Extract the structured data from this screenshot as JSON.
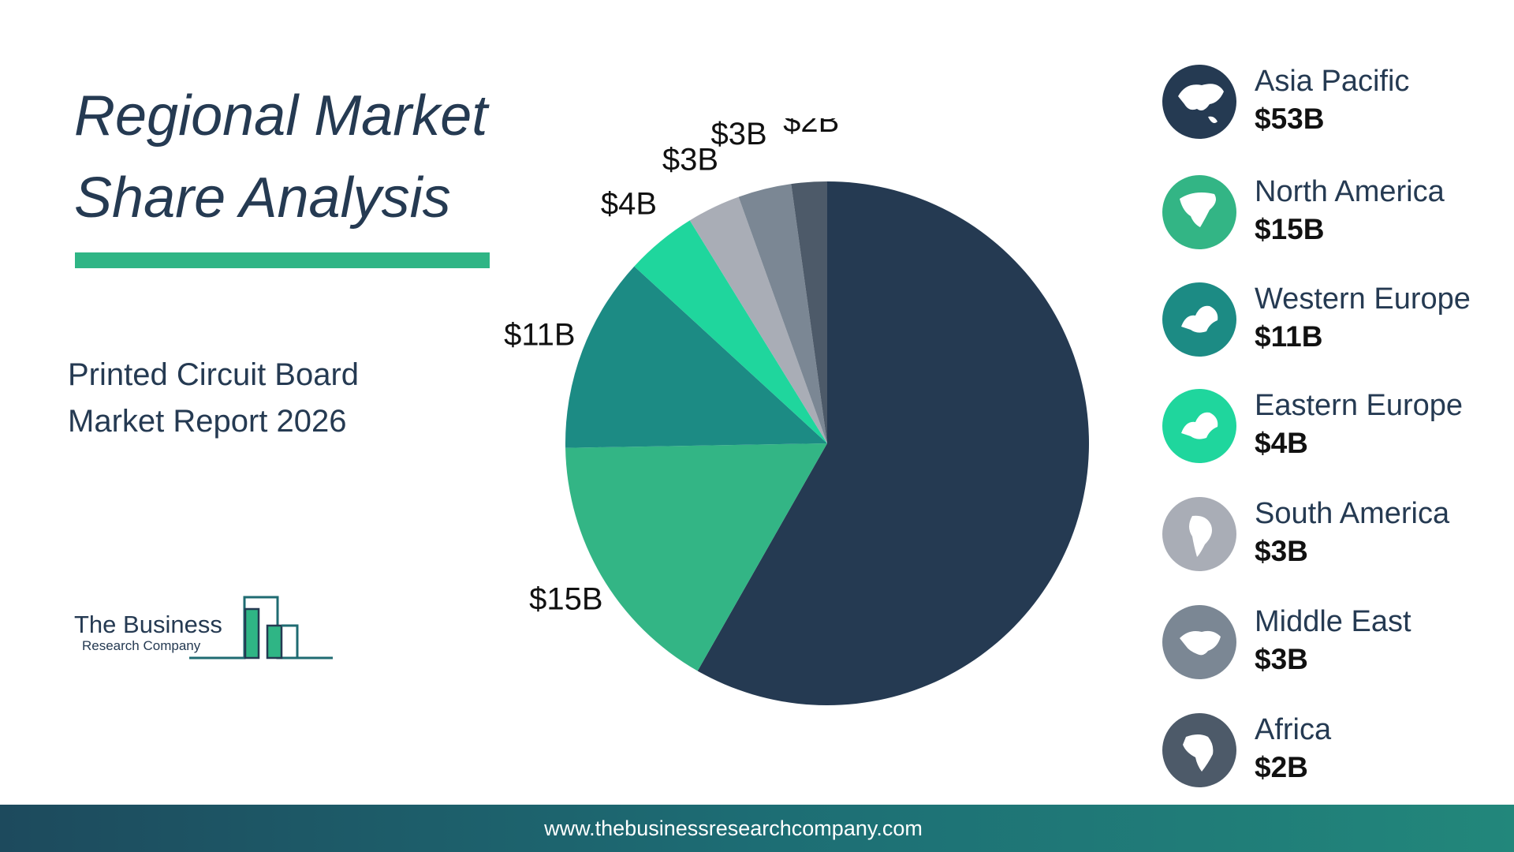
{
  "page": {
    "title_line1": "Regional Market",
    "title_line2": "Share Analysis",
    "subtitle_line1": "Printed Circuit Board",
    "subtitle_line2": "Market Report 2026",
    "logo_line1": "The Business",
    "logo_line2": "Research Company",
    "footer_url": "www.thebusinessresearchcompany.com"
  },
  "colors": {
    "title": "#253a52",
    "accent_bar": "#2fb585"
  },
  "chart_data": {
    "type": "pie",
    "title": "",
    "categories": [
      "Asia Pacific",
      "North America",
      "Western Europe",
      "Eastern Europe",
      "South America",
      "Middle East",
      "Africa"
    ],
    "values": [
      53,
      15,
      11,
      4,
      3,
      3,
      2
    ],
    "unit": "$B",
    "labels": [
      "$53B",
      "$15B",
      "$11B",
      "$4B",
      "$3B",
      "$3B",
      "$2B"
    ],
    "colors": [
      "#253a52",
      "#33b585",
      "#1c8b84",
      "#1fd69d",
      "#a9adb6",
      "#7b8794",
      "#4d5a69"
    ],
    "icons": [
      "asia-map-icon",
      "north-america-map-icon",
      "western-europe-map-icon",
      "eastern-europe-map-icon",
      "south-america-map-icon",
      "middle-east-map-icon",
      "africa-map-icon"
    ],
    "start_angle": "12 o'clock",
    "direction": "clockwise",
    "legend_position": "right"
  }
}
